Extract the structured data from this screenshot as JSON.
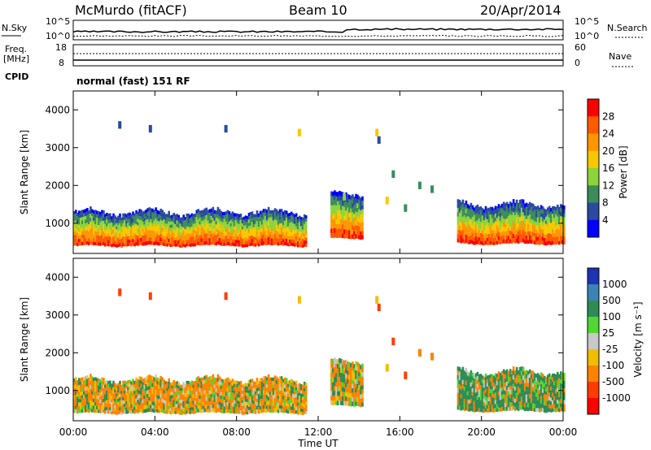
{
  "header": {
    "station": "McMurdo (fitACF)",
    "beam": "Beam 10",
    "date": "20/Apr/2014"
  },
  "status_panel": {
    "left_top_label": "N.Sky",
    "left_mid_label": "Freq.",
    "left_mid_unit": "[MHz]",
    "left_bottom_label": "CPID",
    "right_top_label": "N.Search",
    "right_mid_label": "Nave",
    "noise_ticks": [
      "10^5",
      "10^0"
    ],
    "freq_ticks": [
      "18",
      "8"
    ],
    "nave_ticks": [
      "60",
      "0"
    ],
    "mode_text": "normal (fast) 151 RF"
  },
  "axes": {
    "ylabel": "Slant Range [km]",
    "xlabel": "Time UT",
    "yticks": [
      "4000",
      "3000",
      "2000",
      "1000"
    ],
    "xticks": [
      "00:00",
      "04:00",
      "08:00",
      "12:00",
      "16:00",
      "20:00",
      "00:00"
    ]
  },
  "power_scale": {
    "label": "Power [dB]",
    "ticks": [
      "28",
      "24",
      "20",
      "16",
      "12",
      "8",
      "4"
    ],
    "colors": [
      "#ff0000",
      "#ff5a00",
      "#ff9600",
      "#f7c800",
      "#8cd43c",
      "#3c8c5a",
      "#2a4aa0",
      "#0000ff"
    ]
  },
  "velocity_scale": {
    "label": "Velocity [m s⁻¹]",
    "ticks": [
      "1000",
      "500",
      "100",
      "25",
      "-25",
      "-100",
      "-500",
      "-1000"
    ],
    "colors": [
      "#1e32b4",
      "#3c82b4",
      "#2d8c55",
      "#50d732",
      "#c8c8c8",
      "#f0be00",
      "#ff8200",
      "#ff3c00",
      "#ff0000"
    ]
  },
  "chart_data": [
    {
      "type": "heatmap",
      "title": "Power",
      "xlabel": "Time UT",
      "ylabel": "Slant Range [km]",
      "xlim": [
        0,
        24
      ],
      "ylim": [
        200,
        4500
      ],
      "colorbar": "Power [dB]",
      "echo_bands": [
        {
          "t_start": 0.0,
          "t_end": 11.4,
          "range_min_km": 400,
          "range_max_km": 1300,
          "peak_power_db": 28
        },
        {
          "t_start": 12.6,
          "t_end": 14.2,
          "range_min_km": 600,
          "range_max_km": 1800,
          "peak_power_db": 28
        },
        {
          "t_start": 18.8,
          "t_end": 24.0,
          "range_min_km": 450,
          "range_max_km": 1500,
          "peak_power_db": 28
        }
      ]
    },
    {
      "type": "heatmap",
      "title": "Velocity",
      "xlabel": "Time UT",
      "ylabel": "Slant Range [km]",
      "xlim": [
        0,
        24
      ],
      "ylim": [
        200,
        4500
      ],
      "colorbar": "Velocity [m s⁻¹]",
      "echo_bands": [
        {
          "t_start": 0.0,
          "t_end": 11.4,
          "range_min_km": 400,
          "range_max_km": 1300,
          "dominant_velocity_ms": -100
        },
        {
          "t_start": 12.6,
          "t_end": 14.2,
          "range_min_km": 600,
          "range_max_km": 1800,
          "dominant_velocity_ms": -100
        },
        {
          "t_start": 18.8,
          "t_end": 24.0,
          "range_min_km": 450,
          "range_max_km": 1500,
          "dominant_velocity_ms": 100
        }
      ]
    }
  ]
}
